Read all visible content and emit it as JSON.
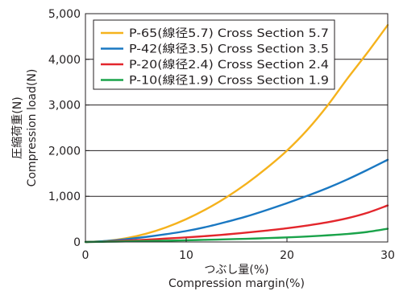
{
  "chart_data": {
    "type": "line",
    "title": "",
    "xlabel": "つぶし量(%)",
    "xlabel_en": "Compression margin(%)",
    "ylabel": "圧縮荷重(N)",
    "ylabel_en": "Compression load(N)",
    "xlim": [
      0,
      30
    ],
    "ylim": [
      0,
      5000
    ],
    "x_ticks": [
      0,
      10,
      20,
      30
    ],
    "x_tick_labels": [
      "0",
      "10",
      "20",
      "30"
    ],
    "y_ticks": [
      0,
      1000,
      2000,
      3000,
      4000,
      5000
    ],
    "y_tick_labels": [
      "0",
      "1,000",
      "2,000",
      "3,000",
      "4,000",
      "5,000"
    ],
    "grid": "horizontal",
    "legend_position": "top-left",
    "x": [
      0,
      2,
      4,
      6,
      8,
      10,
      12,
      14,
      16,
      18,
      20,
      22,
      24,
      26,
      28,
      30
    ],
    "series": [
      {
        "name": "P-65(線径5.7) Cross Section 5.7",
        "color": "#f5b21c",
        "values": [
          0,
          20,
          80,
          180,
          320,
          500,
          720,
          980,
          1280,
          1620,
          2000,
          2450,
          2980,
          3580,
          4150,
          4750
        ]
      },
      {
        "name": "P-42(線径3.5) Cross Section 3.5",
        "color": "#1a78c2",
        "values": [
          0,
          20,
          60,
          110,
          170,
          240,
          330,
          440,
          560,
          700,
          850,
          1010,
          1180,
          1370,
          1580,
          1800
        ]
      },
      {
        "name": "P-20(線径2.4) Cross Section 2.4",
        "color": "#e3262c",
        "values": [
          0,
          10,
          30,
          50,
          75,
          100,
          130,
          165,
          205,
          250,
          300,
          360,
          430,
          520,
          640,
          800
        ]
      },
      {
        "name": "P-10(線径1.9) Cross Section 1.9",
        "color": "#1aa34a",
        "values": [
          0,
          5,
          12,
          20,
          28,
          37,
          47,
          58,
          70,
          84,
          100,
          120,
          145,
          175,
          220,
          290
        ]
      }
    ]
  }
}
